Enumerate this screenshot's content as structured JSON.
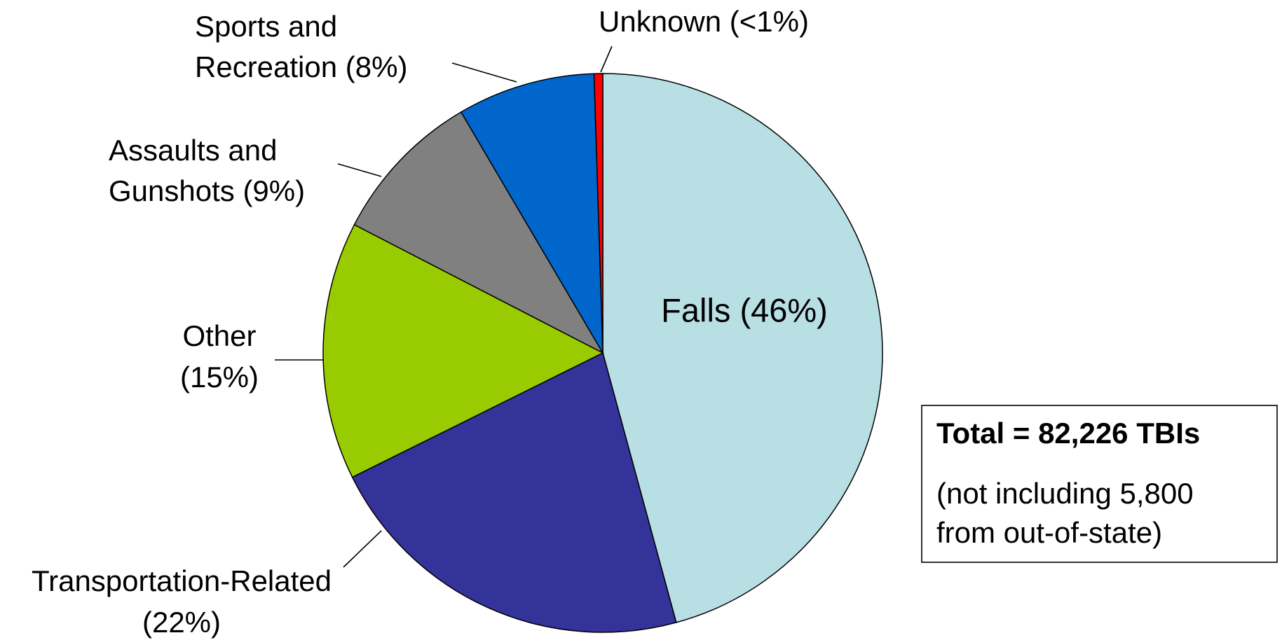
{
  "chart_data": {
    "type": "pie",
    "categories": [
      "Falls",
      "Transportation-Related",
      "Other",
      "Assaults and Gunshots",
      "Sports and Recreation",
      "Unknown"
    ],
    "values": [
      46,
      22,
      15,
      9,
      8,
      0.5
    ],
    "value_labels": [
      [
        "Falls (46%)"
      ],
      [
        "Transportation-Related",
        "(22%)"
      ],
      [
        "Other",
        "(15%)"
      ],
      [
        "Assaults and",
        "Gunshots (9%)"
      ],
      [
        "Sports and",
        "Recreation (8%)"
      ],
      [
        "Unknown (<1%)"
      ]
    ],
    "colors": [
      "#b8e0e4",
      "#333399",
      "#99cc00",
      "#808080",
      "#0066cc",
      "#ff0000"
    ],
    "annotation": {
      "title": "Total = 82,226 TBIs",
      "lines": [
        "(not including 5,800",
        "from out-of-state)"
      ]
    }
  }
}
